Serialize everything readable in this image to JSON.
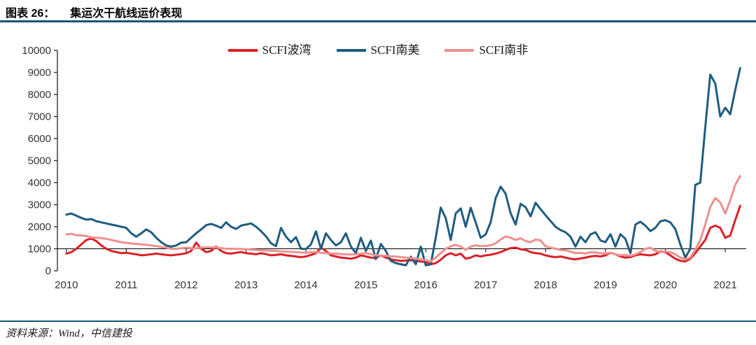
{
  "header": {
    "label": "图表 26：",
    "title": "集运次干航线运价表现"
  },
  "footer": {
    "source": "资料来源：Wind，中信建投"
  },
  "colors": {
    "divider_rule": "#17547a",
    "axis": "#333333",
    "baseline": "#000000"
  },
  "chart_data": {
    "type": "line",
    "title": "",
    "xlabel": "",
    "ylabel": "",
    "grid": false,
    "legend_position": "top-center",
    "xlim": [
      2009.85,
      2021.35
    ],
    "ylim": [
      0,
      10000
    ],
    "y_ticks": [
      0,
      1000,
      2000,
      3000,
      4000,
      5000,
      6000,
      7000,
      8000,
      9000,
      10000
    ],
    "x_ticks": [
      2010,
      2011,
      2012,
      2013,
      2014,
      2015,
      2016,
      2017,
      2018,
      2019,
      2020,
      2021
    ],
    "x_tick_labels": [
      "2010",
      "2011",
      "2012",
      "2013",
      "2014",
      "2015",
      "2016",
      "2017",
      "2018",
      "2019",
      "2020",
      "2021"
    ],
    "baseline_value": 1000,
    "x_start": 2010.0,
    "x_step": 0.0833333,
    "series": [
      {
        "name": "SCFI波湾",
        "color": "#da2128",
        "values": [
          780,
          850,
          1000,
          1200,
          1400,
          1460,
          1350,
          1150,
          1000,
          900,
          850,
          800,
          820,
          780,
          750,
          700,
          720,
          750,
          780,
          750,
          720,
          700,
          730,
          760,
          800,
          900,
          1280,
          1000,
          850,
          900,
          1100,
          900,
          800,
          780,
          820,
          850,
          800,
          780,
          750,
          800,
          760,
          700,
          720,
          750,
          700,
          680,
          650,
          620,
          650,
          720,
          800,
          1050,
          900,
          700,
          650,
          600,
          580,
          550,
          600,
          700,
          650,
          600,
          580,
          700,
          600,
          520,
          480,
          450,
          470,
          480,
          450,
          420,
          400,
          300,
          350,
          500,
          700,
          800,
          700,
          780,
          550,
          600,
          700,
          650,
          700,
          730,
          780,
          850,
          950,
          1030,
          1050,
          980,
          950,
          850,
          800,
          780,
          700,
          650,
          620,
          650,
          600,
          550,
          520,
          560,
          600,
          650,
          680,
          650,
          700,
          820,
          750,
          650,
          600,
          620,
          700,
          750,
          720,
          700,
          750,
          880,
          850,
          700,
          550,
          450,
          430,
          550,
          800,
          1100,
          1400,
          1950,
          2050,
          1950,
          1500,
          1600,
          2300,
          2950
        ]
      },
      {
        "name": "SCFI南美",
        "color": "#1f5c80",
        "values": [
          2550,
          2600,
          2500,
          2400,
          2320,
          2350,
          2250,
          2200,
          2150,
          2100,
          2050,
          2000,
          1950,
          1700,
          1550,
          1700,
          1880,
          1750,
          1500,
          1300,
          1150,
          1100,
          1150,
          1280,
          1300,
          1500,
          1700,
          1880,
          2070,
          2130,
          2050,
          1950,
          2200,
          2000,
          1900,
          2050,
          2100,
          2150,
          2000,
          1800,
          1560,
          1250,
          1120,
          1950,
          1550,
          1300,
          1530,
          1000,
          990,
          1200,
          1790,
          1000,
          1700,
          1400,
          1150,
          1300,
          1700,
          1100,
          800,
          1500,
          900,
          1370,
          530,
          1220,
          900,
          450,
          350,
          300,
          250,
          640,
          300,
          1100,
          250,
          300,
          1500,
          2870,
          2400,
          1400,
          2600,
          2830,
          2000,
          2860,
          2200,
          1500,
          1650,
          2200,
          3300,
          3820,
          3500,
          2620,
          2100,
          3040,
          2890,
          2470,
          3090,
          2800,
          2520,
          2260,
          2000,
          1850,
          1750,
          1550,
          1100,
          1550,
          1300,
          1650,
          1750,
          1380,
          1300,
          1660,
          1100,
          1660,
          1450,
          800,
          2100,
          2230,
          2050,
          1800,
          1950,
          2250,
          2300,
          2200,
          1900,
          1200,
          600,
          1000,
          3900,
          4000,
          6500,
          8900,
          8500,
          7000,
          7400,
          7100,
          8200,
          9200
        ]
      },
      {
        "name": "SCFI南非",
        "color": "#ef908e",
        "values": [
          1650,
          1680,
          1620,
          1600,
          1580,
          1520,
          1500,
          1480,
          1450,
          1400,
          1350,
          1300,
          1270,
          1240,
          1220,
          1200,
          1180,
          1150,
          1120,
          1080,
          1050,
          1000,
          1000,
          1020,
          1050,
          1030,
          1020,
          1050,
          1070,
          1060,
          1060,
          1030,
          1000,
          1000,
          1000,
          990,
          980,
          960,
          950,
          930,
          920,
          910,
          900,
          880,
          870,
          860,
          850,
          830,
          820,
          840,
          850,
          820,
          800,
          780,
          780,
          760,
          750,
          740,
          750,
          780,
          800,
          750,
          700,
          690,
          680,
          660,
          650,
          620,
          600,
          580,
          560,
          520,
          480,
          430,
          600,
          800,
          1000,
          1110,
          1180,
          1100,
          950,
          1100,
          1160,
          1120,
          1130,
          1160,
          1250,
          1420,
          1560,
          1500,
          1400,
          1480,
          1350,
          1300,
          1420,
          1380,
          1110,
          1050,
          1000,
          950,
          930,
          870,
          800,
          820,
          780,
          850,
          830,
          800,
          780,
          820,
          750,
          700,
          720,
          680,
          750,
          850,
          1000,
          1050,
          900,
          850,
          880,
          850,
          750,
          600,
          520,
          600,
          950,
          1400,
          2100,
          2900,
          3300,
          3100,
          2600,
          3200,
          3900,
          4300
        ]
      }
    ]
  }
}
